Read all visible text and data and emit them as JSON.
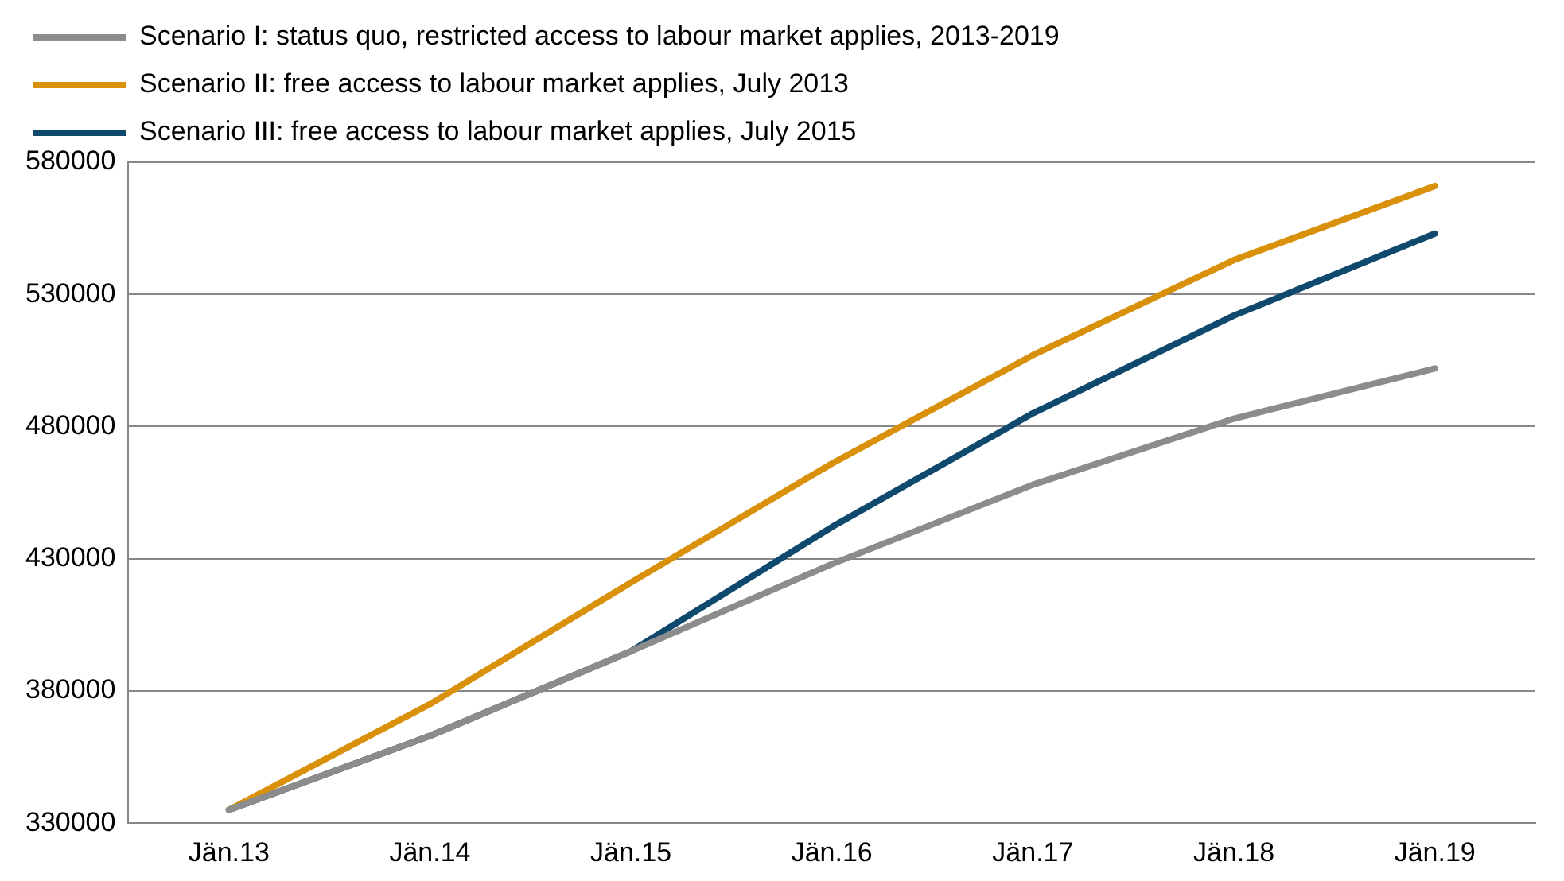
{
  "chart_data": {
    "type": "line",
    "categories": [
      "Jän.13",
      "Jän.14",
      "Jän.15",
      "Jän.16",
      "Jän.17",
      "Jän.18",
      "Jän.19"
    ],
    "series": [
      {
        "name": "Scenario I: status quo, restricted access to labour market applies, 2013-2019",
        "color": "#8c8c8c",
        "values": [
          335000,
          363000,
          395000,
          428000,
          458000,
          483000,
          502000
        ]
      },
      {
        "name": "Scenario II: free access to labour market applies, July 2013",
        "color": "#d9900a",
        "values": [
          335000,
          375000,
          421000,
          466000,
          507000,
          543000,
          571000
        ]
      },
      {
        "name": "Scenario III: free access to labour market applies, July 2015",
        "color": "#0f4a6e",
        "values": [
          335000,
          363000,
          395000,
          442000,
          485000,
          522000,
          553000
        ]
      }
    ],
    "ylim": [
      330000,
      580000
    ],
    "yticks": [
      330000,
      380000,
      430000,
      480000,
      530000,
      580000
    ],
    "grid": "y",
    "legend": "top left",
    "marker": "none",
    "line_style": "solid"
  }
}
